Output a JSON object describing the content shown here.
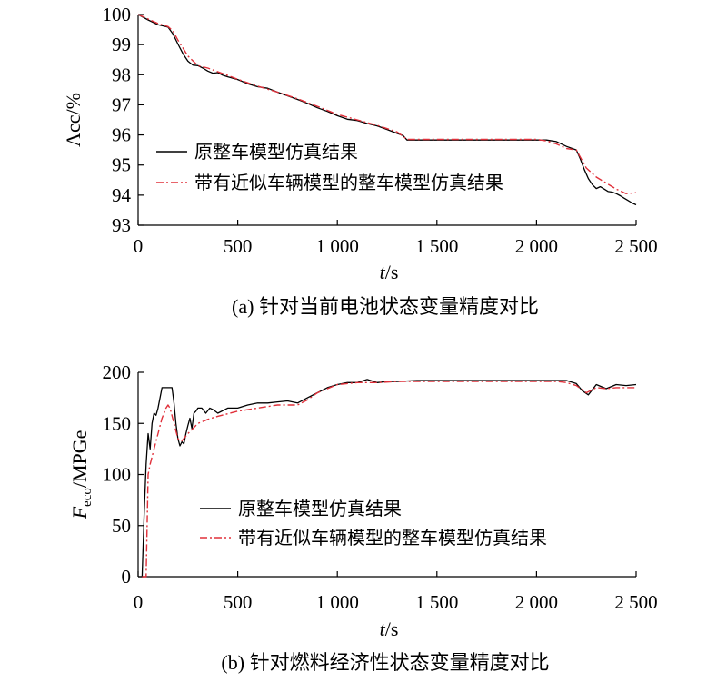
{
  "colors": {
    "series_sim": "#000000",
    "series_approx": "#e0303a",
    "axis": "#000000"
  },
  "chart_data": [
    {
      "id": "a",
      "type": "line",
      "caption": "(a) 针对当前电池状态变量精度对比",
      "xlabel_italic": "t",
      "xlabel_rest": "/s",
      "ylabel": "Acc/%",
      "xlim": [
        0,
        2500
      ],
      "ylim": [
        93,
        100
      ],
      "xticks": [
        0,
        500,
        1000,
        1500,
        2000,
        2500
      ],
      "xtick_labels": [
        "0",
        "500",
        "1 000",
        "1 500",
        "2 000",
        "2 500"
      ],
      "yticks": [
        93,
        94,
        95,
        96,
        97,
        98,
        99,
        100
      ],
      "ytick_labels": [
        "93",
        "94",
        "95",
        "96",
        "97",
        "98",
        "99",
        "100"
      ],
      "grid": false,
      "legend_position": "lower-left",
      "series": [
        {
          "name": "原整车模型仿真结果",
          "style": "solid",
          "x": [
            0,
            50,
            100,
            150,
            175,
            200,
            225,
            250,
            275,
            300,
            325,
            350,
            375,
            400,
            425,
            450,
            500,
            550,
            600,
            650,
            700,
            750,
            800,
            850,
            900,
            950,
            1000,
            1050,
            1100,
            1150,
            1200,
            1250,
            1300,
            1330,
            1350,
            1400,
            1600,
            1800,
            1950,
            2000,
            2050,
            2100,
            2150,
            2200,
            2220,
            2240,
            2260,
            2280,
            2300,
            2320,
            2340,
            2360,
            2380,
            2400,
            2420,
            2440,
            2460,
            2480,
            2500
          ],
          "y": [
            100.0,
            99.82,
            99.66,
            99.58,
            99.35,
            99.02,
            98.7,
            98.45,
            98.32,
            98.3,
            98.22,
            98.12,
            98.05,
            98.07,
            97.98,
            97.93,
            97.84,
            97.7,
            97.6,
            97.55,
            97.42,
            97.3,
            97.18,
            97.05,
            96.9,
            96.78,
            96.64,
            96.52,
            96.48,
            96.38,
            96.3,
            96.18,
            96.05,
            95.98,
            95.83,
            95.83,
            95.83,
            95.83,
            95.83,
            95.83,
            95.83,
            95.78,
            95.62,
            95.5,
            95.2,
            94.85,
            94.55,
            94.35,
            94.22,
            94.28,
            94.2,
            94.12,
            94.1,
            94.05,
            93.98,
            93.9,
            93.82,
            93.74,
            93.68
          ]
        },
        {
          "name": "带有近似车辆模型的整车模型仿真结果",
          "style": "dashdot",
          "x": [
            0,
            50,
            100,
            150,
            175,
            200,
            250,
            300,
            350,
            400,
            500,
            600,
            700,
            800,
            900,
            1000,
            1100,
            1200,
            1300,
            1350,
            1600,
            1800,
            2000,
            2050,
            2100,
            2150,
            2200,
            2250,
            2300,
            2350,
            2400,
            2450,
            2500
          ],
          "y": [
            100.0,
            99.85,
            99.7,
            99.6,
            99.45,
            99.15,
            98.62,
            98.3,
            98.22,
            98.1,
            97.85,
            97.62,
            97.42,
            97.2,
            96.95,
            96.68,
            96.5,
            96.32,
            96.1,
            95.85,
            95.85,
            95.85,
            95.85,
            95.8,
            95.7,
            95.55,
            95.5,
            94.9,
            94.6,
            94.4,
            94.2,
            94.05,
            94.08
          ]
        }
      ]
    },
    {
      "id": "b",
      "type": "line",
      "caption": "(b) 针对燃料经济性状态变量精度对比",
      "xlabel_italic": "t",
      "xlabel_rest": "/s",
      "ylabel_italic": "F",
      "ylabel_sub": "eco",
      "ylabel_rest": "/MPGe",
      "xlim": [
        0,
        2500
      ],
      "ylim": [
        0,
        200
      ],
      "xticks": [
        0,
        500,
        1000,
        1500,
        2000,
        2500
      ],
      "xtick_labels": [
        "0",
        "500",
        "1 000",
        "1 500",
        "2 000",
        "2 500"
      ],
      "yticks": [
        0,
        50,
        100,
        150,
        200
      ],
      "ytick_labels": [
        "0",
        "50",
        "100",
        "150",
        "200"
      ],
      "grid": false,
      "legend_position": "lower-center",
      "series": [
        {
          "name": "原整车模型仿真结果",
          "style": "solid",
          "x": [
            20,
            30,
            40,
            50,
            60,
            70,
            80,
            90,
            100,
            110,
            120,
            130,
            140,
            150,
            160,
            170,
            180,
            190,
            200,
            210,
            220,
            230,
            240,
            250,
            260,
            270,
            280,
            290,
            300,
            320,
            340,
            360,
            380,
            400,
            450,
            500,
            550,
            600,
            650,
            700,
            750,
            800,
            850,
            900,
            950,
            1000,
            1050,
            1100,
            1150,
            1200,
            1250,
            1300,
            1400,
            1600,
            1800,
            2000,
            2100,
            2150,
            2200,
            2230,
            2260,
            2300,
            2350,
            2400,
            2450,
            2500
          ],
          "y": [
            0,
            60,
            110,
            140,
            125,
            150,
            160,
            158,
            165,
            175,
            185,
            185,
            185,
            185,
            185,
            185,
            170,
            150,
            135,
            128,
            132,
            130,
            140,
            148,
            155,
            145,
            160,
            162,
            165,
            165,
            160,
            165,
            163,
            160,
            165,
            165,
            168,
            170,
            170,
            171,
            172,
            170,
            175,
            180,
            185,
            188,
            190,
            190,
            193,
            190,
            191,
            191,
            192,
            192,
            192,
            192,
            192,
            192,
            189,
            182,
            178,
            188,
            184,
            188,
            187,
            188
          ]
        },
        {
          "name": "带有近似车辆模型的整车模型仿真结果",
          "style": "dashdot",
          "x": [
            20,
            40,
            50,
            60,
            80,
            100,
            120,
            140,
            150,
            160,
            180,
            200,
            220,
            250,
            300,
            350,
            400,
            500,
            600,
            700,
            800,
            850,
            900,
            1000,
            1100,
            1200,
            1300,
            1400,
            1600,
            1800,
            2000,
            2100,
            2150,
            2200,
            2250,
            2300,
            2350,
            2400,
            2450,
            2500
          ],
          "y": [
            0,
            0,
            100,
            110,
            125,
            140,
            155,
            165,
            168,
            165,
            150,
            135,
            133,
            140,
            150,
            154,
            157,
            162,
            165,
            168,
            168,
            173,
            180,
            188,
            190,
            190,
            191,
            191,
            191,
            191,
            191,
            191,
            190,
            187,
            180,
            185,
            184,
            185,
            185,
            185
          ]
        }
      ]
    }
  ]
}
